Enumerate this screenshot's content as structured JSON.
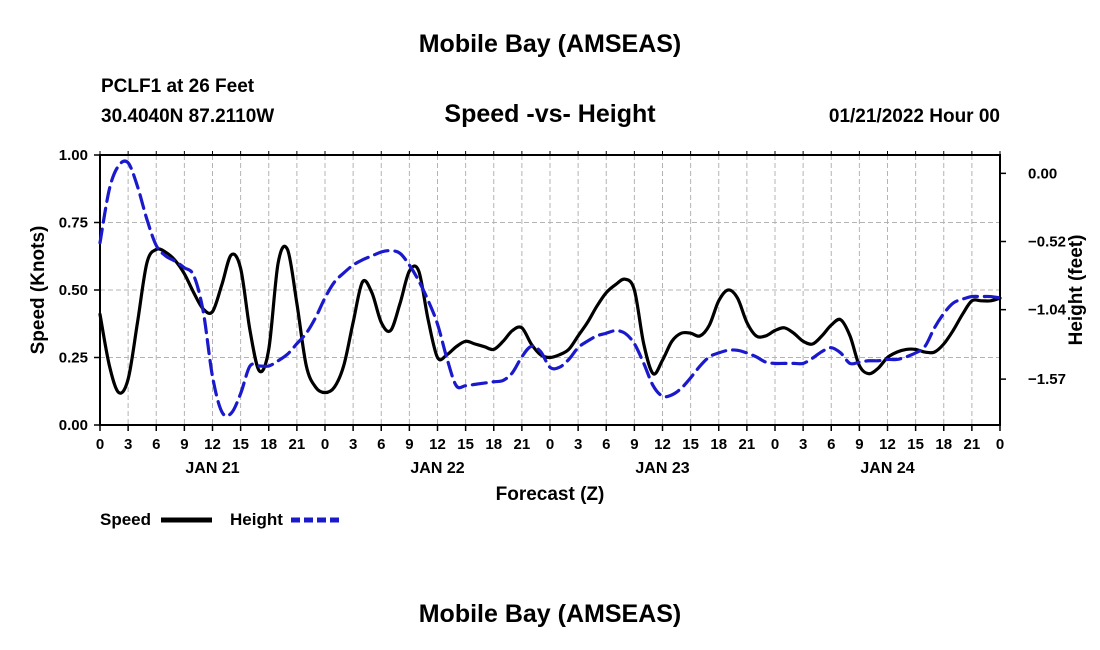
{
  "page": {
    "title_top": "Mobile Bay (AMSEAS)",
    "title_bottom": "Mobile Bay (AMSEAS)",
    "station": "PCLF1 at 26 Feet",
    "coords": "30.4040N  87.2110W",
    "datetime": "01/21/2022 Hour 00"
  },
  "chart_data": {
    "type": "line",
    "title": "Speed -vs- Height",
    "xlabel": "Forecast (Z)",
    "ylabel": "Speed (Knots)",
    "y2label": "Height (feet)",
    "xlim": [
      0,
      96
    ],
    "ylim": [
      0,
      1
    ],
    "y2lim": [
      -1.92,
      0.14
    ],
    "yticks": [
      "0.00",
      "0.25",
      "0.50",
      "0.75",
      "1.00"
    ],
    "y2ticks": [
      "0.00",
      "−0.52",
      "−1.04",
      "−1.57"
    ],
    "y2tick_values": [
      0.0,
      -0.52,
      -1.04,
      -1.57
    ],
    "x_tick_labels": [
      "0",
      "3",
      "6",
      "9",
      "12",
      "15",
      "18",
      "21",
      "0",
      "3",
      "6",
      "9",
      "12",
      "15",
      "18",
      "21",
      "0",
      "3",
      "6",
      "9",
      "12",
      "15",
      "18",
      "21",
      "0",
      "3",
      "6",
      "9",
      "12",
      "15",
      "18",
      "21",
      "0"
    ],
    "day_labels": [
      {
        "label": "JAN 21",
        "hour": 12
      },
      {
        "label": "JAN 22",
        "hour": 36
      },
      {
        "label": "JAN 23",
        "hour": 60
      },
      {
        "label": "JAN 24",
        "hour": 84
      }
    ],
    "legend": [
      {
        "name": "Speed",
        "color": "#000000",
        "style": "solid"
      },
      {
        "name": "Height",
        "color": "#1a1acc",
        "style": "dashed"
      }
    ],
    "series": [
      {
        "name": "Speed",
        "axis": "left",
        "color": "#000000",
        "style": "solid",
        "x": [
          0,
          1,
          2,
          3,
          4,
          5,
          6,
          7,
          8,
          9,
          10,
          11,
          12,
          13,
          14,
          15,
          16,
          17,
          18,
          19,
          20,
          21,
          22,
          23,
          24,
          25,
          26,
          27,
          28,
          29,
          30,
          31,
          32,
          33,
          34,
          35,
          36,
          37,
          38,
          39,
          40,
          41,
          42,
          43,
          44,
          45,
          46,
          47,
          48,
          49,
          50,
          51,
          52,
          53,
          54,
          55,
          56,
          57,
          58,
          59,
          60,
          61,
          62,
          63,
          64,
          65,
          66,
          67,
          68,
          69,
          70,
          71,
          72,
          73,
          74,
          75,
          76,
          77,
          78,
          79,
          80,
          81,
          82,
          83,
          84,
          85,
          86,
          87,
          88,
          89,
          90,
          91,
          92,
          93,
          94,
          95,
          96
        ],
        "y": [
          0.41,
          0.22,
          0.12,
          0.17,
          0.38,
          0.6,
          0.65,
          0.64,
          0.61,
          0.56,
          0.49,
          0.43,
          0.42,
          0.52,
          0.63,
          0.58,
          0.35,
          0.2,
          0.28,
          0.6,
          0.65,
          0.45,
          0.22,
          0.14,
          0.12,
          0.14,
          0.22,
          0.38,
          0.53,
          0.49,
          0.38,
          0.35,
          0.45,
          0.57,
          0.57,
          0.39,
          0.25,
          0.26,
          0.29,
          0.31,
          0.3,
          0.29,
          0.28,
          0.31,
          0.35,
          0.36,
          0.3,
          0.26,
          0.25,
          0.26,
          0.28,
          0.33,
          0.38,
          0.44,
          0.49,
          0.52,
          0.54,
          0.5,
          0.3,
          0.19,
          0.24,
          0.31,
          0.34,
          0.34,
          0.33,
          0.37,
          0.46,
          0.5,
          0.47,
          0.38,
          0.33,
          0.33,
          0.35,
          0.36,
          0.34,
          0.31,
          0.3,
          0.33,
          0.37,
          0.39,
          0.33,
          0.22,
          0.19,
          0.21,
          0.25,
          0.27,
          0.28,
          0.28,
          0.27,
          0.27,
          0.3,
          0.35,
          0.41,
          0.46,
          0.46,
          0.46,
          0.47
        ]
      },
      {
        "name": "Height",
        "axis": "right",
        "color": "#1a1acc",
        "style": "dashed",
        "x": [
          0,
          1,
          2,
          3,
          4,
          5,
          6,
          7,
          8,
          9,
          10,
          11,
          12,
          13,
          14,
          15,
          16,
          17,
          18,
          19,
          20,
          21,
          22,
          23,
          24,
          25,
          26,
          27,
          28,
          29,
          30,
          31,
          32,
          33,
          34,
          35,
          36,
          37,
          38,
          39,
          40,
          41,
          42,
          43,
          44,
          45,
          46,
          47,
          48,
          49,
          50,
          51,
          52,
          53,
          54,
          55,
          56,
          57,
          58,
          59,
          60,
          61,
          62,
          63,
          64,
          65,
          66,
          67,
          68,
          69,
          70,
          71,
          72,
          73,
          74,
          75,
          76,
          77,
          78,
          79,
          80,
          81,
          82,
          83,
          84,
          85,
          86,
          87,
          88,
          89,
          90,
          91,
          92,
          93,
          94,
          95,
          96
        ],
        "y": [
          -0.53,
          -0.12,
          0.06,
          0.08,
          -0.1,
          -0.35,
          -0.55,
          -0.63,
          -0.67,
          -0.72,
          -0.78,
          -1.05,
          -1.55,
          -1.82,
          -1.83,
          -1.68,
          -1.47,
          -1.47,
          -1.47,
          -1.43,
          -1.38,
          -1.3,
          -1.22,
          -1.1,
          -0.95,
          -0.83,
          -0.76,
          -0.7,
          -0.66,
          -0.63,
          -0.6,
          -0.59,
          -0.61,
          -0.7,
          -0.82,
          -0.97,
          -1.15,
          -1.41,
          -1.62,
          -1.62,
          -1.61,
          -1.6,
          -1.59,
          -1.58,
          -1.52,
          -1.4,
          -1.32,
          -1.36,
          -1.48,
          -1.48,
          -1.42,
          -1.33,
          -1.28,
          -1.24,
          -1.22,
          -1.2,
          -1.22,
          -1.3,
          -1.45,
          -1.62,
          -1.7,
          -1.69,
          -1.64,
          -1.56,
          -1.47,
          -1.4,
          -1.37,
          -1.35,
          -1.35,
          -1.37,
          -1.4,
          -1.44,
          -1.45,
          -1.45,
          -1.45,
          -1.45,
          -1.41,
          -1.36,
          -1.33,
          -1.37,
          -1.45,
          -1.44,
          -1.43,
          -1.43,
          -1.42,
          -1.42,
          -1.4,
          -1.37,
          -1.32,
          -1.18,
          -1.07,
          -0.99,
          -0.96,
          -0.94,
          -0.94,
          -0.94,
          -0.95
        ]
      }
    ]
  }
}
